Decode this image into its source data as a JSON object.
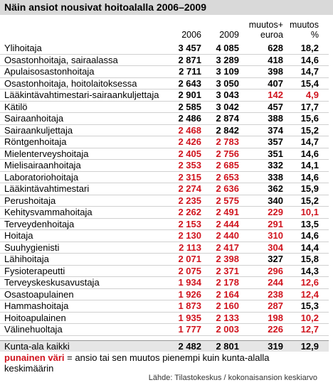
{
  "header": {
    "title": "Näin ansiot nousivat hoitoalalla 2006–2009"
  },
  "table": {
    "columns": [
      "2006",
      "2009",
      "muutos+\neuroa",
      "muutos\n%"
    ],
    "rows": [
      {
        "cells": [
          "Ylihoitaja",
          "3 457",
          "4 085",
          "628",
          "18,2"
        ],
        "red": [
          false,
          false,
          false,
          false
        ]
      },
      {
        "cells": [
          "Osastonhoitaja, sairaalassa",
          "2 871",
          "3 289",
          "418",
          "14,6"
        ],
        "red": [
          false,
          false,
          false,
          false
        ]
      },
      {
        "cells": [
          "Apulaisosastonhoitaja",
          "2 711",
          "3 109",
          "398",
          "14,7"
        ],
        "red": [
          false,
          false,
          false,
          false
        ]
      },
      {
        "cells": [
          "Osastonhoitaja, hoitolaitoksessa",
          "2 643",
          "3 050",
          "407",
          "15,4"
        ],
        "red": [
          false,
          false,
          false,
          false
        ]
      },
      {
        "cells": [
          "Lääkintävahtimestari-sairaankuljettaja",
          "2 901",
          "3 043",
          "142",
          "4,9"
        ],
        "red": [
          false,
          false,
          true,
          true
        ]
      },
      {
        "cells": [
          "Kätilö",
          "2 585",
          "3 042",
          "457",
          "17,7"
        ],
        "red": [
          false,
          false,
          false,
          false
        ]
      },
      {
        "cells": [
          "Sairaanhoitaja",
          "2 486",
          "2 874",
          "388",
          "15,6"
        ],
        "red": [
          false,
          false,
          false,
          false
        ]
      },
      {
        "cells": [
          "Sairaankuljettaja",
          "2 468",
          "2 842",
          "374",
          "15,2"
        ],
        "red": [
          true,
          false,
          false,
          false
        ]
      },
      {
        "cells": [
          "Röntgenhoitaja",
          "2 426",
          "2 783",
          "357",
          "14,7"
        ],
        "red": [
          true,
          true,
          false,
          false
        ]
      },
      {
        "cells": [
          "Mielenterveyshoitaja",
          "2 405",
          "2 756",
          "351",
          "14,6"
        ],
        "red": [
          true,
          true,
          false,
          false
        ]
      },
      {
        "cells": [
          "Mielisairaanhoitaja",
          "2 353",
          "2 685",
          "332",
          "14,1"
        ],
        "red": [
          true,
          true,
          false,
          false
        ]
      },
      {
        "cells": [
          "Laboratoriohoitaja",
          "2 315",
          "2 653",
          "338",
          "14,6"
        ],
        "red": [
          true,
          true,
          false,
          false
        ]
      },
      {
        "cells": [
          "Lääkintävahtimestari",
          "2 274",
          "2 636",
          "362",
          "15,9"
        ],
        "red": [
          true,
          true,
          false,
          false
        ]
      },
      {
        "cells": [
          "Perushoitaja",
          "2 235",
          "2 575",
          "340",
          "15,2"
        ],
        "red": [
          true,
          true,
          false,
          false
        ]
      },
      {
        "cells": [
          "Kehitysvammahoitaja",
          "2 262",
          "2 491",
          "229",
          "10,1"
        ],
        "red": [
          true,
          true,
          true,
          true
        ]
      },
      {
        "cells": [
          "Terveydenhoitaja",
          "2 153",
          "2 444",
          "291",
          "13,5"
        ],
        "red": [
          true,
          true,
          true,
          false
        ]
      },
      {
        "cells": [
          "Hoitaja",
          "2 130",
          "2 440",
          "310",
          "14,6"
        ],
        "red": [
          true,
          true,
          true,
          false
        ]
      },
      {
        "cells": [
          "Suuhygienisti",
          "2 113",
          "2 417",
          "304",
          "14,4"
        ],
        "red": [
          true,
          true,
          true,
          false
        ]
      },
      {
        "cells": [
          "Lähihoitaja",
          "2 071",
          "2 398",
          "327",
          "15,8"
        ],
        "red": [
          true,
          true,
          false,
          false
        ]
      },
      {
        "cells": [
          "Fysioterapeutti",
          "2 075",
          "2 371",
          "296",
          "14,3"
        ],
        "red": [
          true,
          true,
          true,
          false
        ]
      },
      {
        "cells": [
          "Terveyskeskusavustaja",
          "1 934",
          "2 178",
          "244",
          "12,6"
        ],
        "red": [
          true,
          true,
          true,
          true
        ]
      },
      {
        "cells": [
          "Osastoapulainen",
          "1 926",
          "2 164",
          "238",
          "12,4"
        ],
        "red": [
          true,
          true,
          true,
          true
        ]
      },
      {
        "cells": [
          "Hammashoitaja",
          "1 873",
          "2 160",
          "287",
          "15,3"
        ],
        "red": [
          true,
          true,
          true,
          false
        ]
      },
      {
        "cells": [
          "Hoitoapulainen",
          "1 935",
          "2 133",
          "198",
          "10,2"
        ],
        "red": [
          true,
          true,
          true,
          true
        ]
      },
      {
        "cells": [
          "Välinehuoltaja",
          "1 777",
          "2 003",
          "226",
          "12,7"
        ],
        "red": [
          true,
          true,
          true,
          true
        ]
      }
    ],
    "total": [
      "Kunta-ala kaikki",
      "2 482",
      "2 801",
      "319",
      "12,9"
    ]
  },
  "footer": {
    "legend_key": "punainen väri",
    "legend_text": "= ansio tai sen muutos pienempi kuin kunta-alalla keskimäärin",
    "source": "Lähde: Tilastokeskus / kokonaisansion keskiarvo"
  }
}
